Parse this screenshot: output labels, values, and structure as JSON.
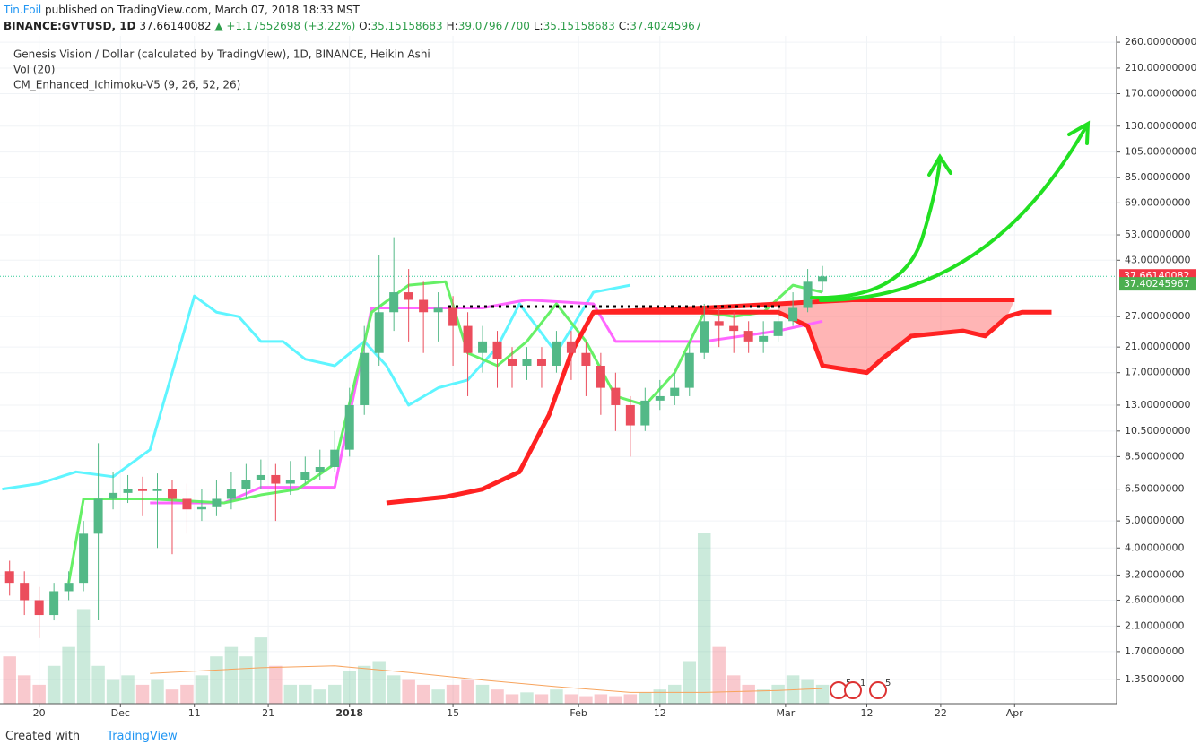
{
  "header": {
    "author": "Tin.Foil",
    "published": "published on TradingView.com, March 07, 2018 18:33 MST",
    "symbol": "BINANCE:GVTUSD, 1D",
    "last": "37.66140082",
    "change": "▲ +1.17552698 (+3.22%)",
    "ohlc": [
      {
        "label": "O:",
        "value": "35.15158683"
      },
      {
        "label": "H:",
        "value": "39.07967700"
      },
      {
        "label": "L:",
        "value": "35.15158683"
      },
      {
        "label": "C:",
        "value": "37.40245967"
      }
    ]
  },
  "chart_data": {
    "type": "candlestick",
    "title": "Genesis Vision / Dollar (calculated by TradingView), 1D, BINANCE, Heikin Ashi",
    "indicators": [
      "Vol (20)",
      "CM_Enhanced_Ichimoku-V5 (9, 26, 52, 26)"
    ],
    "log_scale": true,
    "grid": true,
    "up_color": "#53b987",
    "down_color": "#eb4d5c",
    "xlim": [
      -5.3,
      145.8
    ],
    "xticks": [
      {
        "value": 0,
        "label": "20"
      },
      {
        "value": 11,
        "label": "Dec"
      },
      {
        "value": 21,
        "label": "11"
      },
      {
        "value": 31,
        "label": "21"
      },
      {
        "value": 42,
        "label": "2018"
      },
      {
        "value": 56,
        "label": "15"
      },
      {
        "value": 73,
        "label": "Feb"
      },
      {
        "value": 84,
        "label": "12"
      },
      {
        "value": 101,
        "label": "Mar"
      },
      {
        "value": 112,
        "label": "12"
      },
      {
        "value": 122,
        "label": "22"
      },
      {
        "value": 132,
        "label": "Apr"
      }
    ],
    "ylim": [
      1.106,
      274
    ],
    "yticks": [
      {
        "value": 260,
        "label": "260.00000000"
      },
      {
        "value": 210,
        "label": "210.00000000"
      },
      {
        "value": 170,
        "label": "170.00000000"
      },
      {
        "value": 130,
        "label": "130.00000000"
      },
      {
        "value": 105,
        "label": "105.00000000"
      },
      {
        "value": 85,
        "label": "85.00000000"
      },
      {
        "value": 69,
        "label": "69.00000000"
      },
      {
        "value": 53,
        "label": "53.00000000"
      },
      {
        "value": 43,
        "label": "43.00000000"
      },
      {
        "value": 27,
        "label": "27.00000000"
      },
      {
        "value": 21,
        "label": "21.00000000"
      },
      {
        "value": 17,
        "label": "17.00000000"
      },
      {
        "value": 13,
        "label": "13.00000000"
      },
      {
        "value": 10.5,
        "label": "10.50000000"
      },
      {
        "value": 8.5,
        "label": "8.50000000"
      },
      {
        "value": 6.5,
        "label": "6.50000000"
      },
      {
        "value": 5,
        "label": "5.00000000"
      },
      {
        "value": 4,
        "label": "4.00000000"
      },
      {
        "value": 3.2,
        "label": "3.20000000"
      },
      {
        "value": 2.6,
        "label": "2.60000000"
      },
      {
        "value": 2.1,
        "label": "2.10000000"
      },
      {
        "value": 1.7,
        "label": "1.70000000"
      },
      {
        "value": 1.35,
        "label": "1.35000000"
      }
    ],
    "x": [
      -4,
      -2,
      0,
      2,
      4,
      6,
      8,
      10,
      12,
      14,
      16,
      18,
      20,
      22,
      24,
      26,
      28,
      30,
      32,
      34,
      36,
      38,
      40,
      42,
      44,
      46,
      48,
      50,
      52,
      54,
      56,
      58,
      60,
      62,
      64,
      66,
      68,
      70,
      72,
      74,
      76,
      78,
      80,
      82,
      84,
      86,
      88,
      90,
      92,
      94,
      96,
      98,
      100,
      102,
      104,
      106
    ],
    "open": [
      3.3,
      3.0,
      2.6,
      2.3,
      2.8,
      3.0,
      4.5,
      6.0,
      6.3,
      6.5,
      6.4,
      6.5,
      6.0,
      5.5,
      5.6,
      6.0,
      6.5,
      7.0,
      7.3,
      6.8,
      7.0,
      7.5,
      7.8,
      9.0,
      13,
      20,
      28,
      33,
      31,
      28,
      29,
      25,
      20,
      22,
      19,
      18,
      19,
      18,
      22,
      20,
      18,
      15,
      13,
      11,
      13.5,
      14,
      15,
      20,
      26,
      25,
      24,
      22,
      23,
      26,
      29,
      36
    ],
    "high": [
      3.6,
      3.3,
      2.9,
      3.0,
      3.3,
      5.0,
      9.5,
      7.5,
      7.3,
      7.2,
      7.4,
      7.0,
      6.8,
      6.5,
      7.0,
      7.5,
      8.0,
      8.3,
      8.0,
      8.2,
      8.5,
      9.0,
      10.5,
      15,
      25,
      45,
      52,
      40,
      36,
      33,
      32,
      28,
      25,
      24,
      21,
      21,
      21,
      24,
      24,
      22,
      20,
      17,
      14,
      15,
      16,
      17,
      22,
      30,
      29,
      28,
      26,
      26,
      29,
      33,
      40,
      41
    ],
    "low": [
      2.7,
      2.3,
      1.9,
      2.2,
      2.6,
      2.8,
      2.2,
      5.5,
      5.8,
      5.2,
      4.0,
      3.8,
      4.5,
      5.0,
      5.2,
      5.5,
      6.0,
      6.5,
      5.0,
      6.2,
      6.8,
      7.0,
      7.5,
      8.5,
      12,
      18,
      24,
      22,
      20,
      22,
      18,
      14,
      17,
      15,
      15,
      16,
      15,
      17,
      16,
      14,
      12,
      10.5,
      8.5,
      10.5,
      12.5,
      13,
      14,
      19,
      21,
      20,
      20,
      20,
      22,
      25,
      28,
      33
    ],
    "close": [
      3.0,
      2.6,
      2.3,
      2.8,
      3.0,
      4.5,
      6.0,
      6.3,
      6.5,
      6.4,
      6.5,
      6.0,
      5.5,
      5.6,
      6.0,
      6.5,
      7.0,
      7.3,
      6.8,
      7.0,
      7.5,
      7.8,
      9.0,
      13,
      20,
      28,
      33,
      31,
      28,
      29,
      25,
      20,
      22,
      19,
      18,
      19,
      18,
      22,
      20,
      18,
      15,
      13,
      11,
      13.5,
      14,
      15,
      20,
      26,
      25,
      24,
      22,
      23,
      26,
      29,
      36,
      37.6
    ],
    "volume": [
      50,
      30,
      20,
      40,
      60,
      100,
      40,
      25,
      30,
      20,
      25,
      15,
      20,
      30,
      50,
      60,
      50,
      70,
      40,
      20,
      20,
      15,
      20,
      35,
      40,
      45,
      30,
      25,
      20,
      15,
      20,
      25,
      20,
      15,
      10,
      12,
      10,
      15,
      10,
      8,
      10,
      8,
      10,
      12,
      15,
      20,
      45,
      180,
      60,
      30,
      20,
      15,
      20,
      30,
      25,
      20
    ],
    "volume_ma": {
      "color": "#f7a35c",
      "x": [
        15,
        30,
        40,
        50,
        60,
        70,
        80,
        90,
        100,
        106
      ],
      "values": [
        32,
        38,
        40,
        33,
        25,
        18,
        12,
        12,
        14,
        16
      ]
    },
    "lines": [
      {
        "color": "#5ff5ff",
        "x": [
          -5,
          0,
          5,
          10,
          15,
          18,
          21,
          24,
          27,
          30,
          33,
          36,
          40,
          44,
          47,
          50,
          54,
          58,
          62,
          65,
          70,
          75,
          80
        ],
        "values": [
          6.5,
          6.8,
          7.5,
          7.2,
          9,
          17,
          32,
          28,
          27,
          22,
          22,
          19,
          18,
          22,
          18,
          13,
          15,
          16,
          21,
          30,
          20,
          33,
          35
        ]
      },
      {
        "color": "#ff66ff",
        "x": [
          15,
          25,
          30,
          40,
          45,
          60,
          66,
          75,
          78,
          90,
          100,
          106
        ],
        "values": [
          5.8,
          5.8,
          6.6,
          6.6,
          29,
          29,
          31,
          30,
          22,
          22,
          24,
          26
        ]
      },
      {
        "color": "#66f066",
        "x": [
          4,
          6,
          15,
          25,
          30,
          35,
          40,
          45,
          50,
          55,
          58,
          62,
          66,
          70,
          74,
          78,
          82,
          86,
          90,
          94,
          98,
          102,
          106
        ],
        "values": [
          3,
          6,
          6,
          5.8,
          6.2,
          6.5,
          8,
          28,
          35,
          36,
          20,
          18,
          22,
          30,
          22,
          14,
          13,
          17,
          28,
          27,
          28,
          35,
          33
        ]
      },
      {
        "color": "#ff2222",
        "x": [
          47,
          55,
          60,
          65,
          69,
          72,
          75,
          90,
          100,
          110,
          132
        ],
        "values": [
          5.8,
          6.1,
          6.5,
          7.5,
          12,
          20,
          28,
          29,
          30,
          31,
          31
        ]
      },
      {
        "color": "#ff2222",
        "x": [
          75,
          100,
          104,
          106,
          112,
          114,
          118,
          125,
          128,
          131,
          133,
          137
        ],
        "values": [
          28,
          28,
          25,
          18,
          17,
          19,
          23,
          24,
          23,
          27,
          28,
          28
        ]
      }
    ],
    "price_labels": [
      {
        "value": 37.66140082,
        "color": "#f23645"
      },
      {
        "value": 37.40245967,
        "color": "#4caf50"
      }
    ],
    "events": [
      "5",
      "1",
      "5"
    ]
  },
  "footer": {
    "text": "Created with",
    "brand": "TradingView"
  }
}
